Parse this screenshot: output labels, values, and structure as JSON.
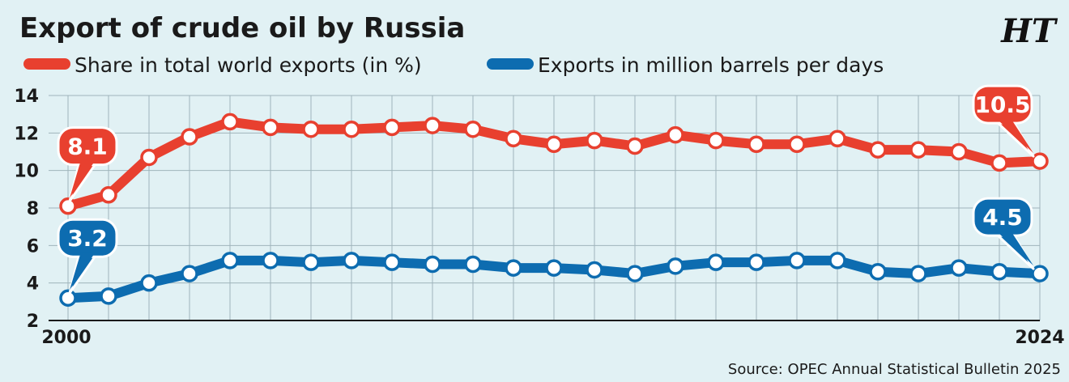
{
  "chart_data": {
    "type": "line",
    "title": "Export of crude oil by Russia",
    "logo": "HT",
    "source": "Source: OPEC Annual Statistical Bulletin 2025",
    "x": [
      2000,
      2001,
      2002,
      2003,
      2004,
      2005,
      2006,
      2007,
      2008,
      2009,
      2010,
      2011,
      2012,
      2013,
      2014,
      2015,
      2016,
      2017,
      2018,
      2019,
      2020,
      2021,
      2022,
      2023,
      2024
    ],
    "x_tick_labels": [
      "2000",
      "2024"
    ],
    "ylim": [
      2,
      14
    ],
    "y_ticks": [
      "2",
      "4",
      "6",
      "8",
      "10",
      "12",
      "14"
    ],
    "grid": true,
    "legend_position": "top-left",
    "series": [
      {
        "name": "Share in total world exports (in %)",
        "color": "#e8402f",
        "values": [
          8.1,
          8.7,
          10.7,
          11.8,
          12.6,
          12.3,
          12.2,
          12.2,
          12.3,
          12.4,
          12.2,
          11.7,
          11.4,
          11.6,
          11.3,
          11.9,
          11.6,
          11.4,
          11.4,
          11.7,
          11.1,
          11.1,
          11.0,
          10.4,
          10.5
        ],
        "callouts": {
          "first": "8.1",
          "last": "10.5"
        }
      },
      {
        "name": "Exports in million barrels per days",
        "color": "#0d6cb0",
        "values": [
          3.2,
          3.3,
          4.0,
          4.5,
          5.2,
          5.2,
          5.1,
          5.2,
          5.1,
          5.0,
          5.0,
          4.8,
          4.8,
          4.7,
          4.5,
          4.9,
          5.1,
          5.1,
          5.2,
          5.2,
          4.6,
          4.5,
          4.8,
          4.6,
          4.5
        ],
        "callouts": {
          "first": "3.2",
          "last": "4.5"
        }
      }
    ]
  }
}
